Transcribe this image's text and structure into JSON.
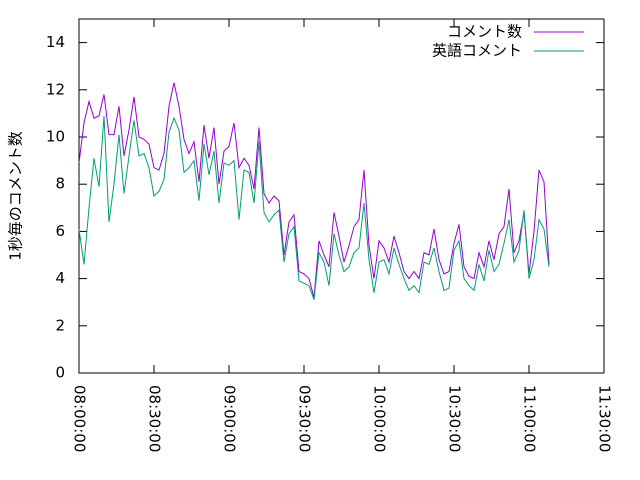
{
  "chart_data": {
    "type": "line",
    "y_label": "1秒毎のコメント数",
    "x": [
      "08:00:00",
      "08:02:00",
      "08:04:00",
      "08:06:00",
      "08:08:00",
      "08:10:00",
      "08:12:00",
      "08:14:00",
      "08:16:00",
      "08:18:00",
      "08:20:00",
      "08:22:00",
      "08:24:00",
      "08:26:00",
      "08:28:00",
      "08:30:00",
      "08:32:00",
      "08:34:00",
      "08:36:00",
      "08:38:00",
      "08:40:00",
      "08:42:00",
      "08:44:00",
      "08:46:00",
      "08:48:00",
      "08:50:00",
      "08:52:00",
      "08:54:00",
      "08:56:00",
      "08:58:00",
      "09:00:00",
      "09:02:00",
      "09:04:00",
      "09:06:00",
      "09:08:00",
      "09:10:00",
      "09:12:00",
      "09:14:00",
      "09:16:00",
      "09:18:00",
      "09:20:00",
      "09:22:00",
      "09:24:00",
      "09:26:00",
      "09:28:00",
      "09:30:00",
      "09:32:00",
      "09:34:00",
      "09:36:00",
      "09:38:00",
      "09:40:00",
      "09:42:00",
      "09:44:00",
      "09:46:00",
      "09:48:00",
      "09:50:00",
      "09:52:00",
      "09:54:00",
      "09:56:00",
      "09:58:00",
      "10:00:00",
      "10:02:00",
      "10:04:00",
      "10:06:00",
      "10:08:00",
      "10:10:00",
      "10:12:00",
      "10:14:00",
      "10:16:00",
      "10:18:00",
      "10:20:00",
      "10:22:00",
      "10:24:00",
      "10:26:00",
      "10:28:00",
      "10:30:00",
      "10:32:00",
      "10:34:00",
      "10:36:00",
      "10:38:00",
      "10:40:00",
      "10:42:00",
      "10:44:00",
      "10:46:00",
      "10:48:00",
      "10:50:00",
      "10:52:00",
      "10:54:00",
      "10:56:00",
      "10:58:00",
      "11:00:00",
      "11:02:00",
      "11:04:00",
      "11:06:00",
      "11:08:00"
    ],
    "series": [
      {
        "name": "コメント数",
        "color": "#9400d3",
        "values": [
          8.9,
          10.6,
          11.5,
          10.8,
          10.9,
          11.8,
          10.1,
          10.1,
          11.3,
          9.2,
          10.3,
          11.7,
          10.0,
          9.9,
          9.7,
          8.7,
          8.6,
          9.3,
          11.3,
          12.3,
          11.3,
          9.9,
          9.3,
          9.8,
          8.1,
          10.5,
          9.1,
          10.4,
          8.0,
          9.4,
          9.6,
          10.6,
          8.7,
          9.1,
          8.8,
          7.8,
          10.4,
          7.6,
          7.2,
          7.5,
          7.3,
          5.0,
          6.4,
          6.7,
          4.3,
          4.2,
          4.0,
          3.2,
          5.6,
          5.0,
          4.5,
          6.8,
          5.8,
          4.7,
          5.4,
          6.2,
          6.5,
          8.6,
          5.4,
          4.0,
          5.6,
          5.3,
          4.7,
          5.8,
          5.1,
          4.3,
          4.0,
          4.3,
          4.0,
          5.1,
          5.0,
          6.1,
          4.8,
          4.2,
          4.3,
          5.5,
          6.3,
          4.5,
          4.1,
          4.0,
          5.1,
          4.5,
          5.6,
          4.8,
          5.9,
          6.2,
          7.8,
          5.1,
          5.6,
          6.8,
          4.2,
          6.0,
          8.6,
          8.1,
          4.6
        ]
      },
      {
        "name": "英語コメント",
        "color": "#009e73",
        "values": [
          6.1,
          4.6,
          7.0,
          9.1,
          7.9,
          10.9,
          6.4,
          8.0,
          10.1,
          7.6,
          9.2,
          10.7,
          9.2,
          9.3,
          8.7,
          7.5,
          7.7,
          8.2,
          10.2,
          10.8,
          10.3,
          8.5,
          8.7,
          9.0,
          7.3,
          9.7,
          8.4,
          9.4,
          7.2,
          8.9,
          8.8,
          9.0,
          6.5,
          8.6,
          8.5,
          7.2,
          9.8,
          6.8,
          6.4,
          6.7,
          6.9,
          4.7,
          5.9,
          6.2,
          3.9,
          3.8,
          3.7,
          3.1,
          5.1,
          4.7,
          3.7,
          5.9,
          5.0,
          4.3,
          4.5,
          5.1,
          5.3,
          7.2,
          4.8,
          3.4,
          4.7,
          4.8,
          4.2,
          5.3,
          4.6,
          4.0,
          3.5,
          3.7,
          3.4,
          4.7,
          4.6,
          5.3,
          4.3,
          3.5,
          3.6,
          5.2,
          5.6,
          4.0,
          3.7,
          3.5,
          4.6,
          3.9,
          5.2,
          4.3,
          4.6,
          5.5,
          6.5,
          4.7,
          5.2,
          6.9,
          4.0,
          4.8,
          6.5,
          6.1,
          4.5
        ]
      }
    ],
    "xlim": [
      "08:00:00",
      "11:30:00"
    ],
    "xticks": [
      "08:00:00",
      "08:30:00",
      "09:00:00",
      "09:30:00",
      "10:00:00",
      "10:30:00",
      "11:00:00",
      "11:30:00"
    ],
    "ylim": [
      0,
      15
    ],
    "yticks": [
      0,
      2,
      4,
      6,
      8,
      10,
      12,
      14
    ],
    "legend": "top-right"
  }
}
